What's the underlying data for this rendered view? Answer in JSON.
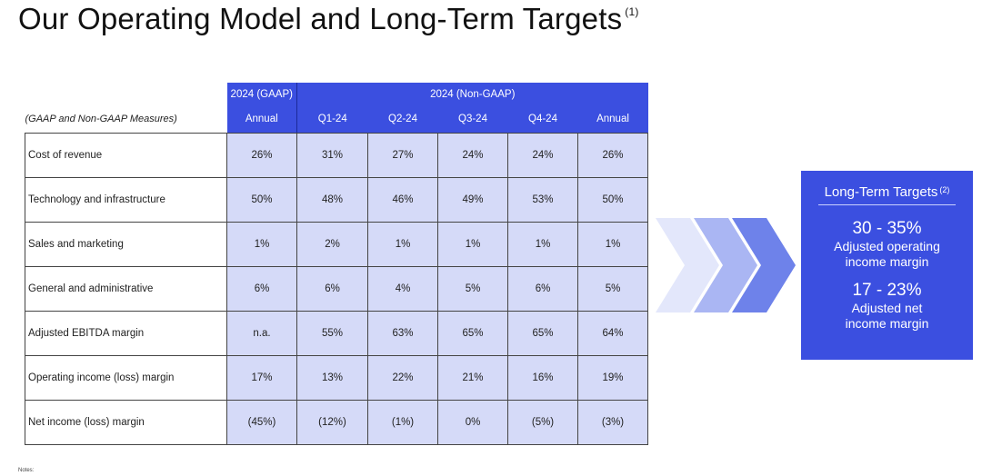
{
  "slide": {
    "title": "Our Operating Model and Long-Term Targets",
    "title_footnote": "(1)",
    "notes_label": "Notes:"
  },
  "table": {
    "measures_label": "(GAAP and Non-GAAP Measures)",
    "gaap_group": "2024 (GAAP)",
    "nongaap_group": "2024 (Non-GAAP)",
    "columns": [
      "Annual",
      "Q1-24",
      "Q2-24",
      "Q3-24",
      "Q4-24",
      "Annual"
    ],
    "rows": [
      {
        "label": "Cost of revenue",
        "values": [
          "26%",
          "31%",
          "27%",
          "24%",
          "24%",
          "26%"
        ]
      },
      {
        "label": "Technology and infrastructure",
        "values": [
          "50%",
          "48%",
          "46%",
          "49%",
          "53%",
          "50%"
        ]
      },
      {
        "label": "Sales and marketing",
        "values": [
          "1%",
          "2%",
          "1%",
          "1%",
          "1%",
          "1%"
        ]
      },
      {
        "label": "General and administrative",
        "values": [
          "6%",
          "6%",
          "4%",
          "5%",
          "6%",
          "5%"
        ]
      },
      {
        "label": "Adjusted EBITDA margin",
        "values": [
          "n.a.",
          "55%",
          "63%",
          "65%",
          "65%",
          "64%"
        ]
      },
      {
        "label": "Operating income (loss) margin",
        "values": [
          "17%",
          "13%",
          "22%",
          "21%",
          "16%",
          "19%"
        ]
      },
      {
        "label": "Net income (loss) margin",
        "values": [
          "(45%)",
          "(12%)",
          "(1%)",
          "0%",
          "(5%)",
          "(3%)"
        ]
      }
    ]
  },
  "targets": {
    "title": "Long-Term Targets",
    "title_footnote": "(2)",
    "items": [
      {
        "value": "30 - 35%",
        "line1": "Adjusted operating",
        "line2": "income margin"
      },
      {
        "value": "17 - 23%",
        "line1": "Adjusted net",
        "line2": "income margin"
      }
    ]
  },
  "colors": {
    "header_blue": "#3b4fe0",
    "cell_fill": "#d5daf8",
    "chevron_light": "#e3e7fb",
    "chevron_mid": "#aab6f3",
    "chevron_dark": "#6e82ea"
  }
}
